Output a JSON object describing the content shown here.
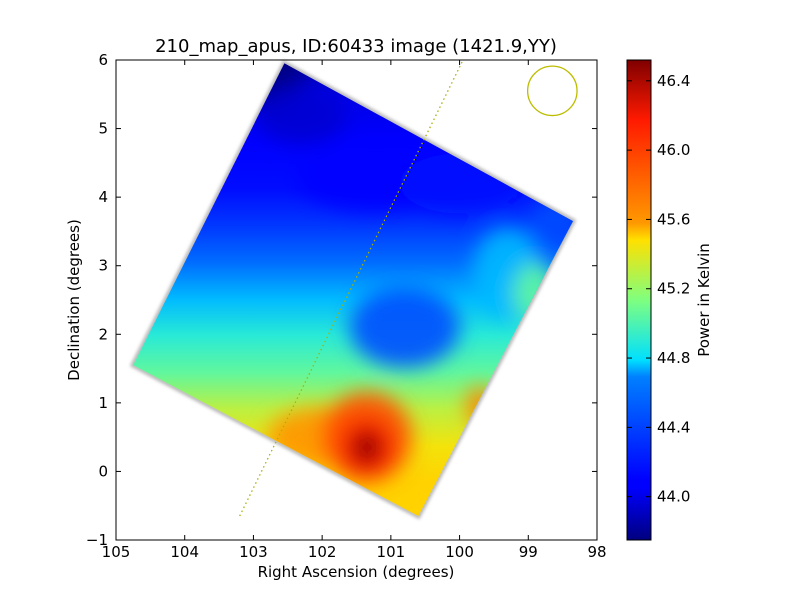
{
  "chart_data": {
    "type": "heatmap",
    "title": "210_map_apus, ID:60433 image (1421.9,YY)",
    "xlabel": "Right Ascension (degrees)",
    "ylabel": "Declination (degrees)",
    "xlim": [
      105,
      98
    ],
    "ylim": [
      -1,
      6
    ],
    "x_ticks": [
      105,
      104,
      103,
      102,
      101,
      100,
      99,
      98
    ],
    "x_tick_labels": [
      "105",
      "104",
      "103",
      "102",
      "101",
      "100",
      "99",
      "98"
    ],
    "y_ticks": [
      -1,
      0,
      1,
      2,
      3,
      4,
      5,
      6
    ],
    "y_tick_labels": [
      "−1",
      "0",
      "1",
      "2",
      "3",
      "4",
      "5",
      "6"
    ],
    "colorbar": {
      "label": "Power in Kelvin",
      "colormap": "jet",
      "min": 43.75,
      "max": 46.52,
      "ticks": [
        44.0,
        44.4,
        44.8,
        45.2,
        45.6,
        46.0,
        46.4
      ],
      "tick_labels": [
        "44.0",
        "44.4",
        "44.8",
        "45.2",
        "45.6",
        "46.0",
        "46.4"
      ]
    },
    "map_footprint": [
      {
        "ra": 102.55,
        "dec": 5.95
      },
      {
        "ra": 98.35,
        "dec": 3.65
      },
      {
        "ra": 100.6,
        "dec": -0.65
      },
      {
        "ra": 104.75,
        "dec": 1.55
      }
    ],
    "hotspot": {
      "ra": 101.35,
      "dec": 0.35,
      "value": 46.5
    },
    "cold_corner": {
      "ra": 102.7,
      "dec": 5.8,
      "value": 43.75
    },
    "warm_spot": {
      "ra": 99.7,
      "dec": 0.95,
      "value": 45.7
    },
    "dotted_line": {
      "start": {
        "ra": 103.2,
        "dec": -0.65
      },
      "end": {
        "ra": 99.95,
        "dec": 6.0
      },
      "color": "#a8b400"
    },
    "beam_circle": {
      "ra": 98.65,
      "dec": 5.55,
      "radius_deg": 0.36,
      "color": "#bdbd00"
    }
  }
}
